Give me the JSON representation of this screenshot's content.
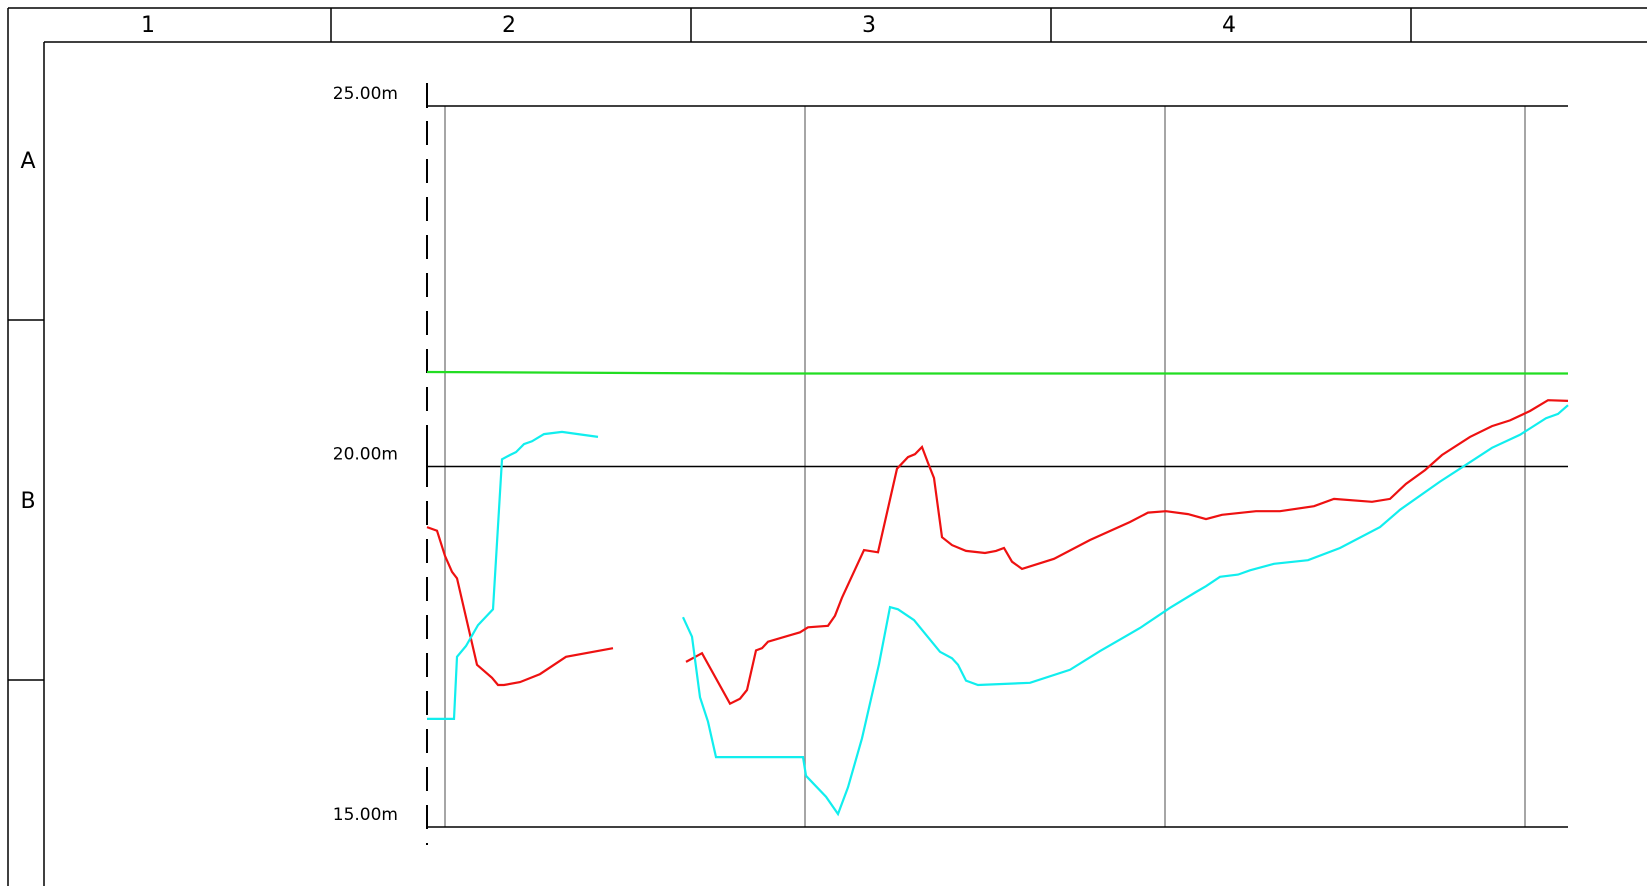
{
  "frame": {
    "columns": [
      "1",
      "2",
      "3",
      "4"
    ],
    "rows": [
      "A",
      "B"
    ]
  },
  "chart_data": {
    "type": "line",
    "xlim": [
      0,
      1141
    ],
    "ylim": [
      15,
      25
    ],
    "yticks": [
      {
        "value": 25,
        "label": "25.00m"
      },
      {
        "value": 20,
        "label": "20.00m"
      },
      {
        "value": 15,
        "label": "15.00m"
      }
    ],
    "vlines": [
      18,
      378,
      738,
      1098
    ],
    "series": [
      {
        "color": "#22dd22",
        "x": [
          0,
          323,
          1141
        ],
        "values": [
          21.31,
          21.29,
          21.29
        ]
      },
      {
        "color": "#ee1111",
        "x": [
          0,
          10,
          18,
          25,
          30,
          50,
          65,
          71,
          77,
          93,
          113,
          139,
          186,
          222,
          259,
          275,
          303,
          313,
          320,
          329,
          335,
          341,
          373,
          381,
          401,
          408,
          415,
          437,
          451,
          470,
          481,
          488,
          495,
          501,
          507,
          515,
          525,
          539,
          558,
          569,
          577,
          585,
          595,
          627,
          663,
          703,
          721,
          739,
          761,
          779,
          795,
          829,
          853,
          887,
          907,
          945,
          963,
          979,
          998,
          1015,
          1043,
          1065,
          1083,
          1103,
          1121,
          1141
        ],
        "values": [
          19.16,
          19.11,
          18.76,
          18.54,
          18.45,
          17.25,
          17.07,
          16.97,
          16.97,
          17.01,
          17.12,
          17.36,
          17.48,
          null,
          17.29,
          17.41,
          16.71,
          16.78,
          16.9,
          17.45,
          17.48,
          17.57,
          17.7,
          17.77,
          17.79,
          17.93,
          18.18,
          18.84,
          18.81,
          19.97,
          20.13,
          20.17,
          20.27,
          20.05,
          19.84,
          19.02,
          18.91,
          18.83,
          18.8,
          18.83,
          18.87,
          18.68,
          18.58,
          18.72,
          18.98,
          19.23,
          19.36,
          19.38,
          19.34,
          19.27,
          19.33,
          19.38,
          19.38,
          19.45,
          19.55,
          19.51,
          19.55,
          19.76,
          19.95,
          20.16,
          20.41,
          20.56,
          20.64,
          20.77,
          20.92,
          20.91
        ]
      },
      {
        "color": "#11eeee",
        "x": [
          0,
          27,
          30,
          39,
          51,
          66,
          75,
          83,
          89,
          97,
          105,
          117,
          135,
          151,
          171,
          213,
          256,
          265,
          273,
          281,
          289,
          376,
          379,
          399,
          411,
          421,
          435,
          452,
          463,
          471,
          487,
          513,
          525,
          531,
          539,
          551,
          603,
          643,
          673,
          713,
          743,
          769,
          779,
          793,
          811,
          823,
          847,
          881,
          913,
          953,
          973,
          1013,
          1043,
          1065,
          1093,
          1119,
          1131,
          1141
        ],
        "values": [
          16.5,
          16.5,
          17.36,
          17.51,
          17.8,
          18.02,
          20.1,
          20.16,
          20.2,
          20.31,
          20.35,
          20.45,
          20.48,
          20.45,
          20.41,
          null,
          17.91,
          17.64,
          16.8,
          16.46,
          15.97,
          15.97,
          15.71,
          15.42,
          15.18,
          15.55,
          16.23,
          17.26,
          18.05,
          18.02,
          17.87,
          17.43,
          17.34,
          17.25,
          17.03,
          16.97,
          17.0,
          17.18,
          17.44,
          17.76,
          18.04,
          18.26,
          18.34,
          18.47,
          18.5,
          18.56,
          18.65,
          18.7,
          18.87,
          19.16,
          19.4,
          19.79,
          20.06,
          20.26,
          20.44,
          20.67,
          20.73,
          20.85
        ]
      }
    ]
  }
}
